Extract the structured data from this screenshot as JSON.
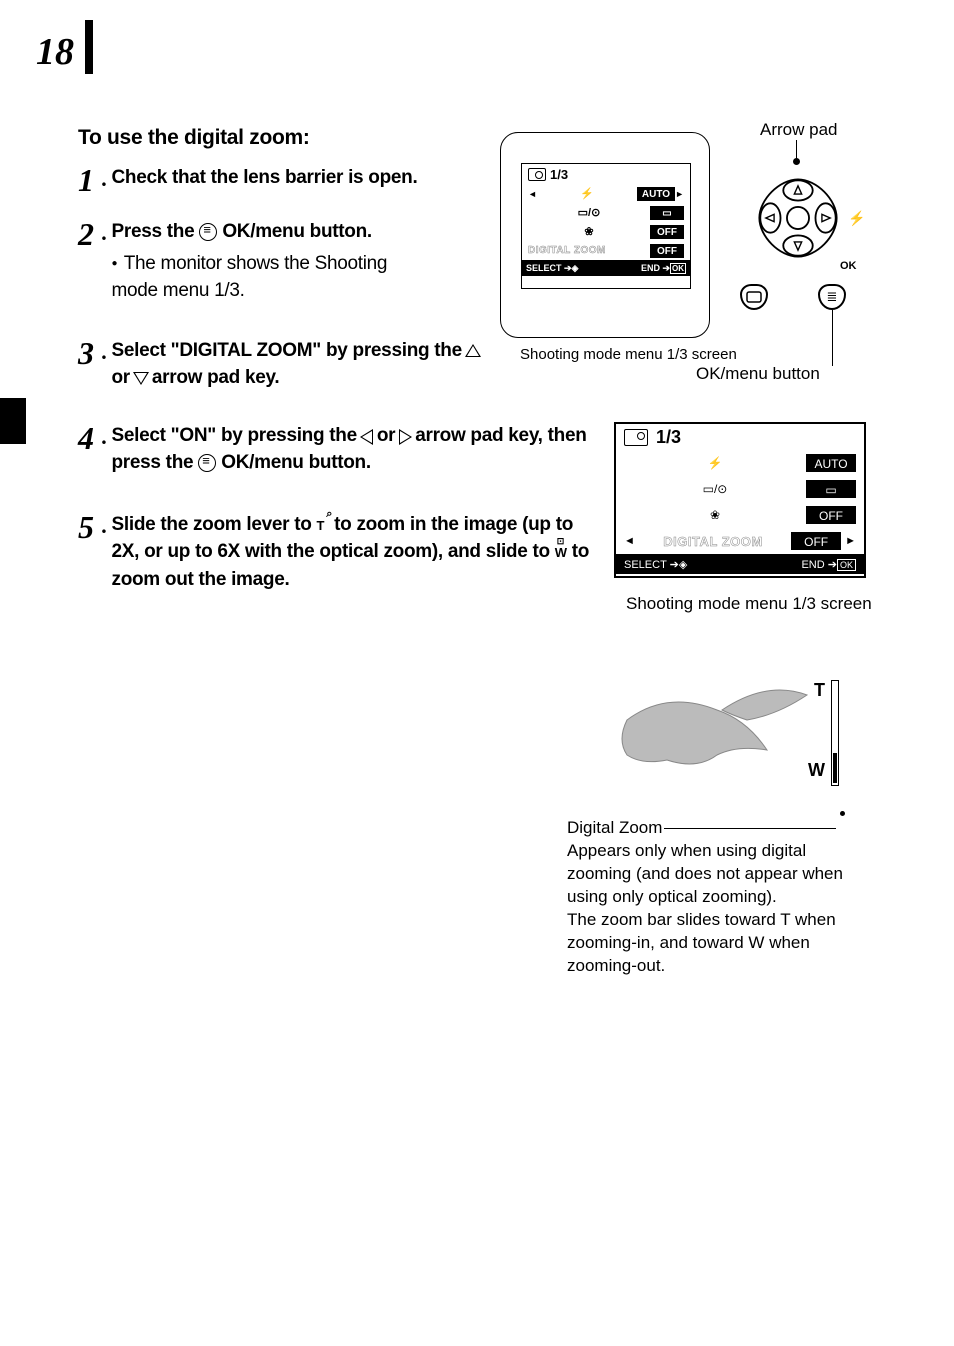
{
  "page_number": "18",
  "section_title": "To use the digital zoom:",
  "steps": [
    {
      "num": "1",
      "text": "Check that the lens barrier is open."
    },
    {
      "num": "2",
      "text_a": "Press the ",
      "text_b": " OK/menu button.",
      "sub": "The monitor shows the Shooting mode menu 1/3."
    },
    {
      "num": "3",
      "text_a": "Select \"DIGITAL ZOOM\" by pressing the ",
      "text_b": " or ",
      "text_c": " arrow pad key."
    },
    {
      "num": "4",
      "text_a": "Select \"ON\" by pressing the ",
      "text_b": " or ",
      "text_c": " arrow pad key, then press the ",
      "text_d": " OK/menu button."
    },
    {
      "num": "5",
      "text_a": "Slide the zoom lever to ",
      "text_b": " to zoom in the image (up to 2X, or up to 6X with the optical zoom), and slide to ",
      "text_c": " to zoom out the image."
    }
  ],
  "lcd": {
    "page": "1/3",
    "rows": [
      {
        "icon": "flash",
        "value": "AUTO"
      },
      {
        "icon": "drive",
        "value": "▭"
      },
      {
        "icon": "macro",
        "value": "OFF"
      },
      {
        "label": "DIGITAL ZOOM",
        "value": "OFF"
      }
    ],
    "footer_left": "SELECT",
    "footer_right": "END",
    "caption": "Shooting mode menu 1/3 screen"
  },
  "arrowpad_label": "Arrow pad",
  "ok_label": "OK",
  "okmenu_label": "OK/menu button",
  "menu2": {
    "page": "1/3",
    "rows": [
      {
        "icon": "flash",
        "value": "AUTO"
      },
      {
        "icon": "drive",
        "value": "▭"
      },
      {
        "icon": "macro",
        "value": "OFF"
      },
      {
        "label": "DIGITAL ZOOM",
        "value": "OFF",
        "selected": true
      }
    ],
    "footer_left": "SELECT",
    "footer_right": "END",
    "caption": "Shooting mode menu 1/3 screen"
  },
  "zoom": {
    "t": "T",
    "w": "W",
    "cap1": "Digital Zoom",
    "cap2": "Appears only when using digital zooming (and does not appear when using only optical zooming).\nThe zoom bar slides toward T when zooming-in, and toward W when zooming-out."
  }
}
